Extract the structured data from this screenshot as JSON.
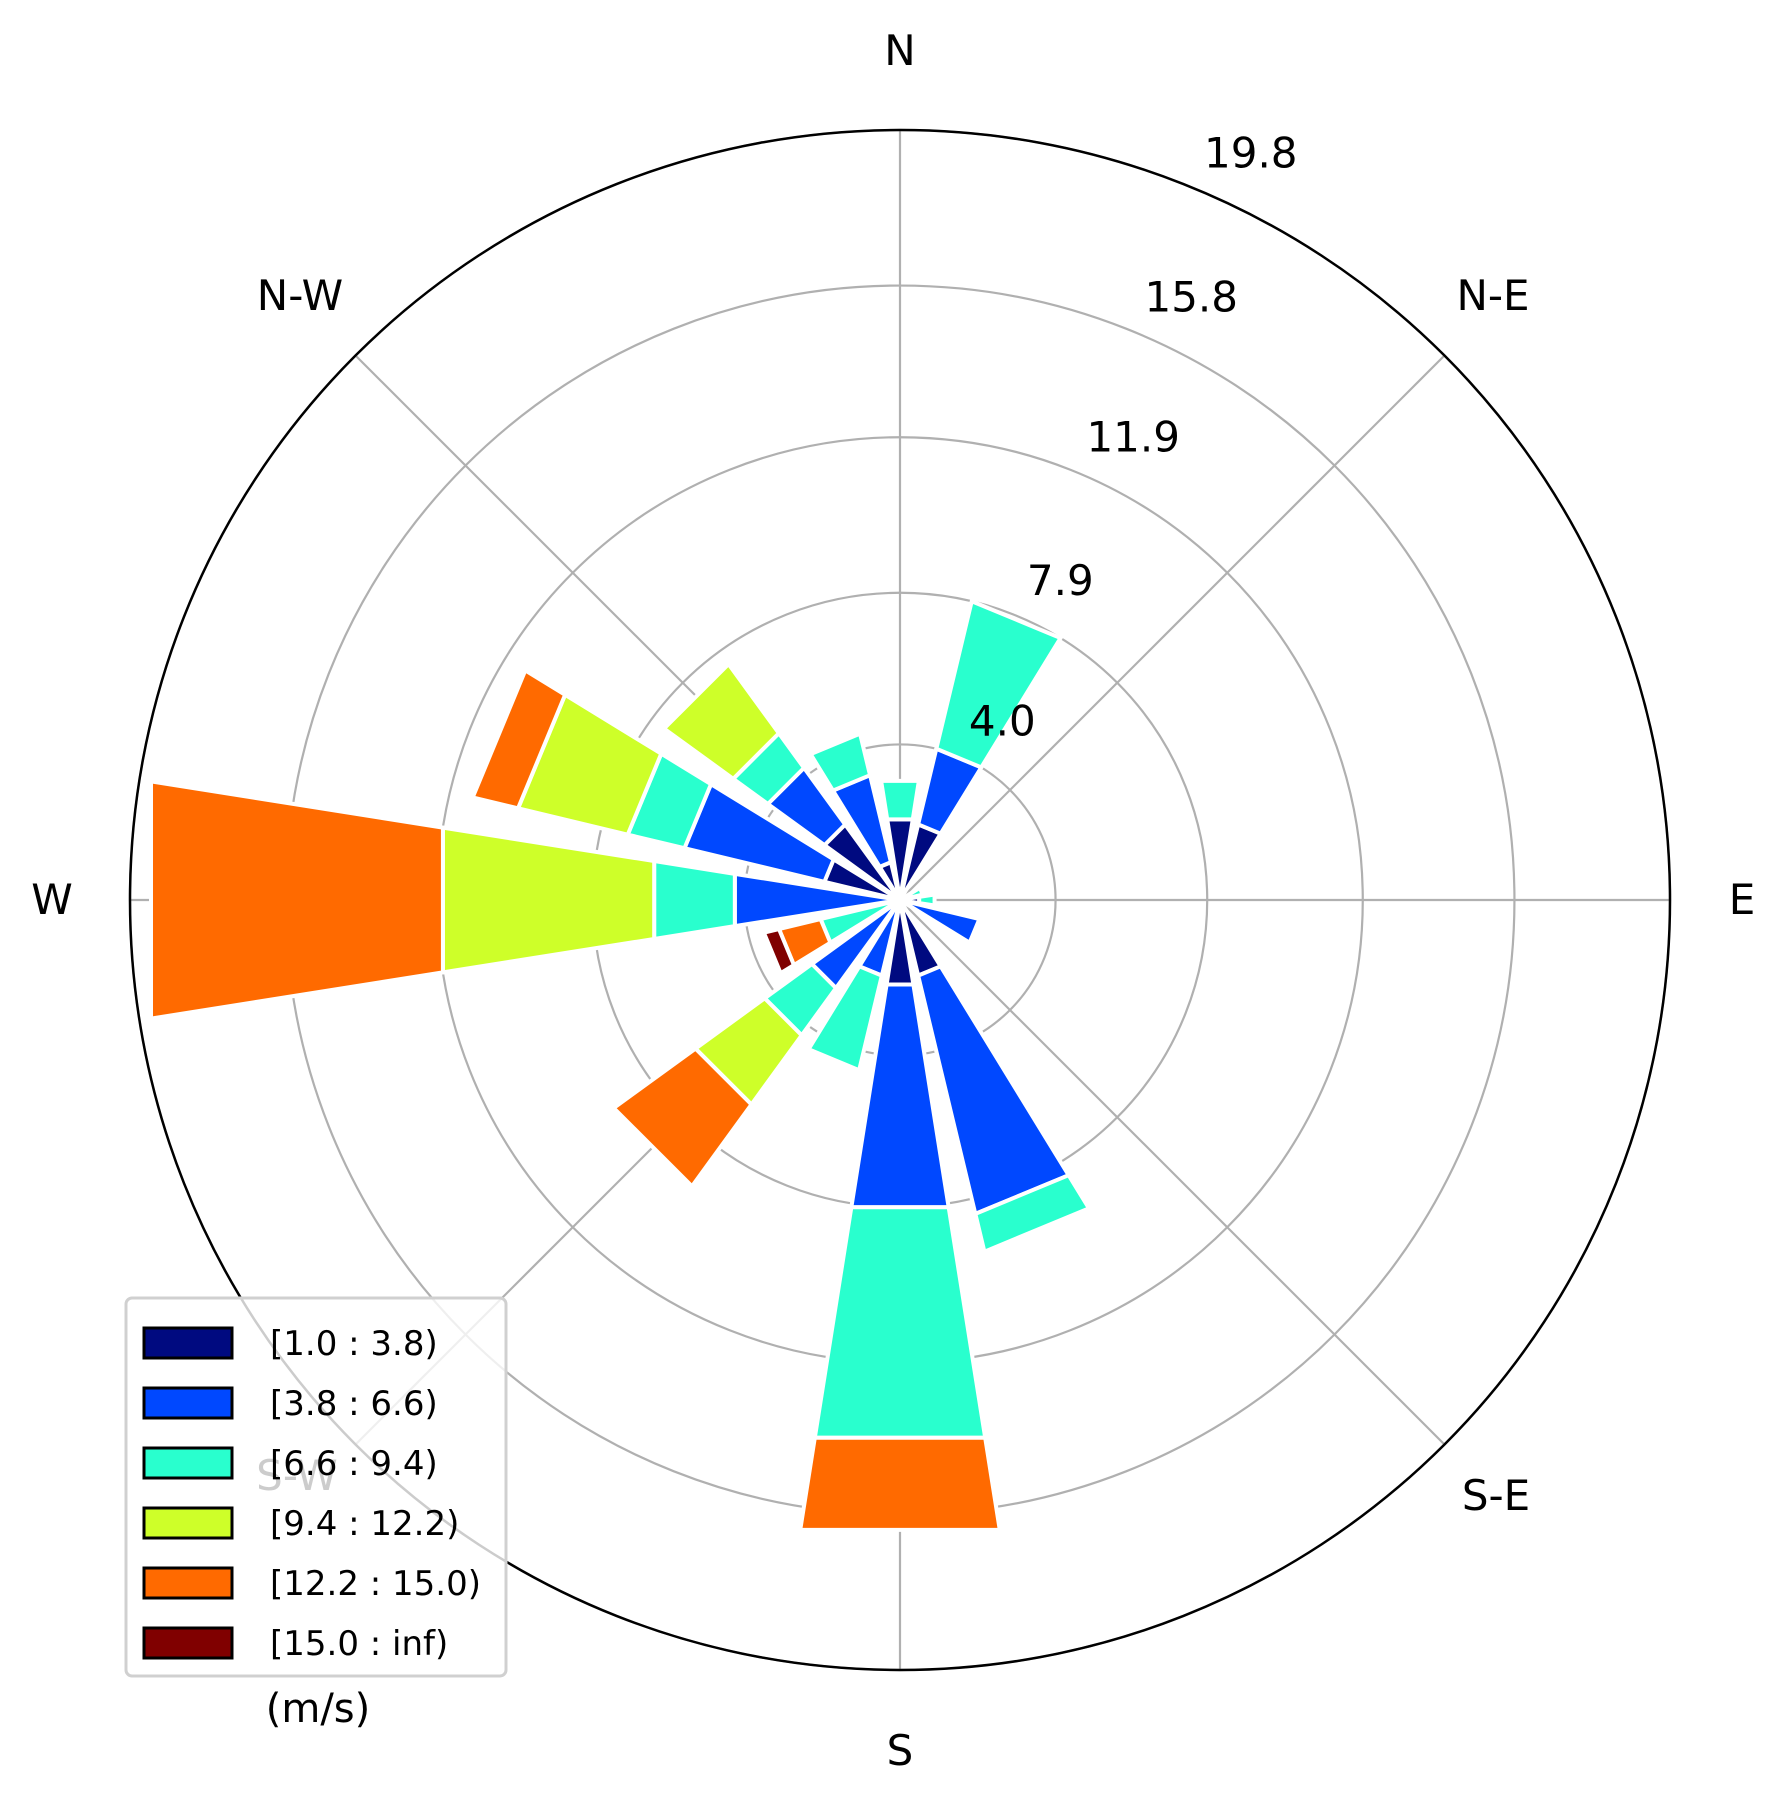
{
  "chart_data": {
    "type": "windrose",
    "direction_labels": [
      "E",
      "N-E",
      "N",
      "N-W",
      "W",
      "S-W",
      "S",
      "S-E"
    ],
    "radial_ticks": [
      4.0,
      7.9,
      11.9,
      15.8,
      19.8
    ],
    "radial_tick_labels": [
      "4.0",
      "7.9",
      "11.9",
      "15.8",
      "19.8"
    ],
    "rmax": 19.8,
    "units": "(m/s)",
    "bin_labels": [
      "[1.0 : 3.8)",
      "[3.8 : 6.6)",
      "[6.6 : 9.4)",
      "[9.4 : 12.2)",
      "[12.2 : 15.0)",
      "[15.0 : inf)"
    ],
    "bin_colors": [
      "#000a80",
      "#0048ff",
      "#29ffce",
      "#ceff29",
      "#ff6a00",
      "#800000"
    ],
    "directions_deg": [
      0,
      22.5,
      45,
      67.5,
      90,
      112.5,
      135,
      157.5,
      180,
      202.5,
      225,
      247.5,
      270,
      292.5,
      315,
      337.5
    ],
    "stacked_values": [
      [
        0.5,
        0.0,
        0.4,
        0.0,
        0.0,
        0.0
      ],
      [
        0.3,
        0.0,
        0.3,
        0.0,
        0.0,
        0.0
      ],
      [
        0.0,
        0.0,
        0.0,
        0.0,
        0.0,
        0.0
      ],
      [
        2.0,
        2.0,
        3.9,
        0.0,
        0.0,
        0.0
      ],
      [
        2.1,
        0.0,
        1.0,
        0.0,
        0.0,
        0.0
      ],
      [
        1.0,
        2.3,
        1.1,
        0.0,
        0.0,
        0.0
      ],
      [
        2.4,
        1.8,
        1.1,
        2.2,
        0.0,
        0.0
      ],
      [
        2.0,
        3.7,
        1.5,
        2.9,
        1.2,
        0.0
      ],
      [
        0.0,
        4.3,
        2.1,
        5.5,
        7.6,
        0.0
      ],
      [
        0.0,
        0.0,
        2.1,
        0.0,
        1.1,
        0.4
      ],
      [
        0.0,
        2.8,
        1.5,
        2.2,
        2.6,
        0.0
      ],
      [
        0.0,
        2.0,
        2.5,
        0.0,
        0.0,
        0.0
      ],
      [
        2.2,
        5.8,
        6.0,
        0.0,
        2.4,
        0.0
      ],
      [
        2.0,
        6.3,
        1.0,
        0.0,
        0.0,
        0.0
      ],
      [
        0.0,
        0.0,
        0.0,
        0.0,
        0.0,
        0.0
      ],
      [
        0.0,
        2.1,
        0.0,
        0.0,
        0.0,
        0.0
      ]
    ],
    "legend_position": "lower-left",
    "grid": true
  }
}
